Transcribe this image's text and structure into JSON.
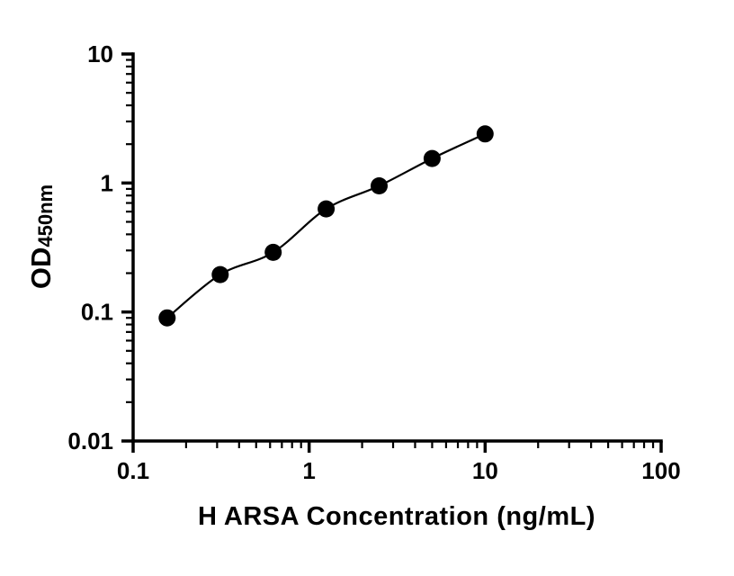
{
  "chart_data": {
    "type": "scatter",
    "title": "",
    "xlabel": "H ARSA Concentration (ng/mL)",
    "ylabel": "OD450nm",
    "ylabel_main": "OD",
    "ylabel_sub": "450nm",
    "x_scale": "log",
    "y_scale": "log",
    "xlim": [
      0.1,
      100
    ],
    "ylim": [
      0.01,
      10
    ],
    "x_ticks": [
      0.1,
      1,
      10,
      100
    ],
    "x_tick_labels": [
      "0.1",
      "1",
      "10",
      "100"
    ],
    "y_ticks": [
      10,
      1,
      0.1,
      0.01
    ],
    "y_tick_labels": [
      "10",
      "1",
      "0.1",
      "0.01"
    ],
    "grid": false,
    "legend": "none",
    "line": true,
    "marker_color": "#000000",
    "line_color": "#000000",
    "axis_color": "#000000",
    "points": [
      {
        "x": 0.156,
        "y": 0.09
      },
      {
        "x": 0.3125,
        "y": 0.195
      },
      {
        "x": 0.625,
        "y": 0.29
      },
      {
        "x": 1.25,
        "y": 0.63
      },
      {
        "x": 2.5,
        "y": 0.95
      },
      {
        "x": 5,
        "y": 1.55
      },
      {
        "x": 10,
        "y": 2.4
      }
    ]
  }
}
